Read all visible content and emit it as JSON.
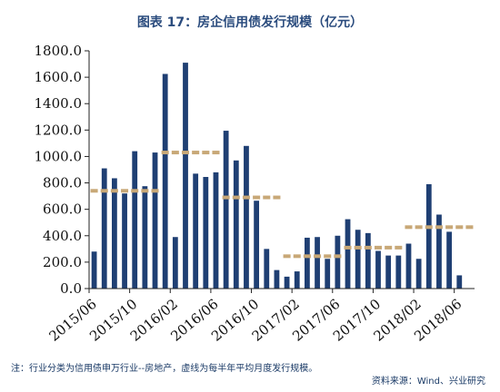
{
  "chart_data": {
    "type": "bar",
    "title": "图表 17：房企信用债发行规模（亿元）",
    "ylim": [
      0,
      1800
    ],
    "y_ticks": [
      "0.0",
      "200.0",
      "400.0",
      "600.0",
      "800.0",
      "1000.0",
      "1200.0",
      "1400.0",
      "1600.0",
      "1800.0"
    ],
    "x_tick_labels": [
      "2015/06",
      "2015/10",
      "2016/02",
      "2016/06",
      "2016/10",
      "2017/02",
      "2017/06",
      "2017/10",
      "2018/02",
      "2018/06"
    ],
    "categories": [
      "2015/06",
      "2015/07",
      "2015/08",
      "2015/09",
      "2015/10",
      "2015/11",
      "2015/12",
      "2016/01",
      "2016/02",
      "2016/03",
      "2016/04",
      "2016/05",
      "2016/06",
      "2016/07",
      "2016/08",
      "2016/09",
      "2016/10",
      "2016/11",
      "2016/12",
      "2017/01",
      "2017/02",
      "2017/03",
      "2017/04",
      "2017/05",
      "2017/06",
      "2017/07",
      "2017/08",
      "2017/09",
      "2017/10",
      "2017/11",
      "2017/12",
      "2018/01",
      "2018/02",
      "2018/03",
      "2018/04",
      "2018/05",
      "2018/06",
      "2018/07"
    ],
    "series": [
      {
        "kind": "bar",
        "color": "#1f3f73",
        "values": [
          280,
          910,
          835,
          720,
          1040,
          775,
          1030,
          1625,
          390,
          1710,
          870,
          845,
          880,
          1195,
          970,
          1080,
          665,
          300,
          140,
          90,
          130,
          385,
          390,
          225,
          400,
          525,
          445,
          420,
          285,
          250,
          250,
          340,
          225,
          790,
          560,
          430,
          100,
          0
        ]
      },
      {
        "kind": "average-dash",
        "color": "#c8a877",
        "values": [
          740,
          740,
          740,
          740,
          740,
          740,
          740,
          1030,
          1030,
          1030,
          1030,
          1030,
          1030,
          690,
          690,
          690,
          690,
          690,
          690,
          245,
          245,
          245,
          245,
          245,
          245,
          310,
          310,
          310,
          310,
          310,
          310,
          465,
          465,
          465,
          465,
          465,
          465,
          465
        ]
      }
    ]
  },
  "note": "注：行业分类为信用债申万行业--房地产，虚线为每半年平均月度发行规模。",
  "source": "资料来源：Wind、兴业研究"
}
